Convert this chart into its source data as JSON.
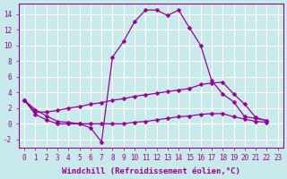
{
  "background_color": "#c8eaea",
  "grid_color": "#b8d8d8",
  "line_color": "#990099",
  "xlabel": "Windchill (Refroidissement éolien,°C)",
  "xlim_min": -0.5,
  "xlim_max": 23.5,
  "ylim_min": -3.0,
  "ylim_max": 15.3,
  "yticks": [
    -2,
    0,
    2,
    4,
    6,
    8,
    10,
    12,
    14
  ],
  "curve1_x": [
    0,
    1,
    2,
    3,
    4,
    5,
    6,
    7,
    8,
    9,
    10,
    11,
    12,
    13,
    14,
    15,
    16,
    17,
    18,
    19,
    20,
    21,
    22
  ],
  "curve1_y": [
    3.0,
    1.8,
    1.0,
    0.3,
    0.2,
    0.0,
    -0.5,
    -2.3,
    8.5,
    10.5,
    13.0,
    14.5,
    14.5,
    13.8,
    14.5,
    12.2,
    10.0,
    5.5,
    3.8,
    2.8,
    0.9,
    0.7,
    0.4
  ],
  "curve2_x": [
    0,
    1,
    2,
    3,
    4,
    5,
    6,
    7,
    8,
    9,
    10,
    11,
    12,
    13,
    14,
    15,
    16,
    17,
    18,
    19,
    20,
    21,
    22
  ],
  "curve2_y": [
    3.0,
    1.5,
    1.5,
    1.7,
    2.0,
    2.2,
    2.5,
    2.7,
    3.0,
    3.2,
    3.5,
    3.7,
    3.9,
    4.1,
    4.3,
    4.5,
    5.0,
    5.2,
    5.3,
    3.8,
    2.5,
    0.8,
    0.4
  ],
  "curve3_x": [
    0,
    1,
    2,
    3,
    4,
    5,
    6,
    7,
    8,
    9,
    10,
    11,
    12,
    13,
    14,
    15,
    16,
    17,
    18,
    19,
    20,
    21,
    22
  ],
  "curve3_y": [
    3.0,
    1.2,
    0.5,
    0.0,
    0.0,
    0.0,
    0.0,
    0.0,
    0.0,
    0.0,
    0.2,
    0.3,
    0.5,
    0.7,
    0.9,
    1.0,
    1.2,
    1.3,
    1.3,
    0.9,
    0.6,
    0.3,
    0.2
  ],
  "marker_size": 2.5,
  "line_width": 0.9,
  "tick_fontsize": 5.5,
  "xlabel_fontsize": 6.5
}
